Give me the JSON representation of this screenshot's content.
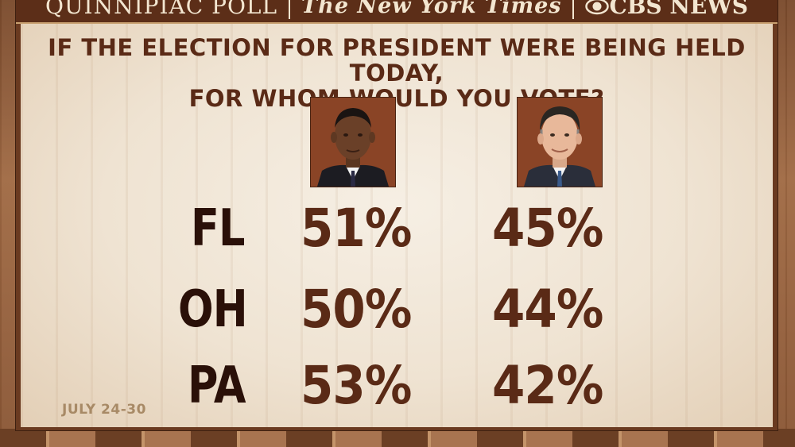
{
  "header": {
    "pollster": "QUINNIPIAC POLL",
    "newspaper": "The New York Times",
    "network": "CBS NEWS"
  },
  "question": {
    "line1": "IF THE ELECTION FOR PRESIDENT WERE BEING HELD TODAY,",
    "line2": "FOR WHOM WOULD YOU VOTE?"
  },
  "candidates": [
    {
      "icon": "obama-portrait-icon"
    },
    {
      "icon": "romney-portrait-icon"
    }
  ],
  "results": [
    {
      "state": "FL",
      "values": [
        "51%",
        "45%"
      ]
    },
    {
      "state": "OH",
      "values": [
        "50%",
        "44%"
      ]
    },
    {
      "state": "PA",
      "values": [
        "53%",
        "42%"
      ]
    }
  ],
  "date_range": "JULY 24-30",
  "colors": {
    "board_frame": "#5c2e18",
    "panel_bg": "#f3ead9",
    "heading_text": "#5a2a16",
    "state_text": "#2a1008",
    "date_text": "#a88a66"
  }
}
